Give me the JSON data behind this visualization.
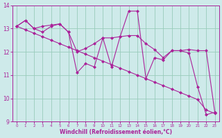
{
  "line1_x": [
    0,
    1,
    2,
    3,
    4,
    5,
    6,
    7,
    8,
    9,
    10,
    11,
    12,
    13,
    14,
    15,
    16,
    17,
    18,
    19,
    20,
    21,
    22,
    23
  ],
  "line1_y": [
    13.1,
    13.35,
    13.0,
    12.85,
    13.1,
    13.2,
    12.85,
    11.1,
    11.5,
    11.35,
    12.6,
    11.35,
    12.65,
    13.75,
    13.75,
    10.85,
    11.75,
    11.65,
    12.05,
    12.05,
    11.95,
    10.5,
    9.3,
    9.4
  ],
  "line2_x": [
    0,
    1,
    2,
    3,
    4,
    5,
    6,
    7,
    8,
    9,
    10,
    11,
    12,
    13,
    14,
    15,
    16,
    17,
    18,
    19,
    20,
    21,
    22,
    23
  ],
  "line2_y": [
    13.1,
    12.95,
    12.8,
    12.65,
    12.5,
    12.35,
    12.2,
    12.05,
    11.9,
    11.75,
    11.6,
    11.45,
    11.3,
    11.15,
    11.0,
    10.85,
    10.7,
    10.55,
    10.4,
    10.25,
    10.1,
    9.95,
    9.5,
    9.35
  ],
  "line3_x": [
    0,
    1,
    2,
    3,
    4,
    5,
    6,
    7,
    8,
    9,
    10,
    11,
    12,
    13,
    14,
    15,
    16,
    17,
    18,
    19,
    20,
    21,
    22,
    23
  ],
  "line3_y": [
    13.1,
    13.35,
    13.0,
    13.1,
    13.15,
    13.2,
    12.85,
    12.0,
    12.15,
    12.35,
    12.6,
    12.6,
    12.65,
    12.7,
    12.7,
    12.35,
    12.1,
    11.75,
    12.05,
    12.05,
    12.1,
    12.05,
    12.05,
    9.4
  ],
  "line_color": "#aa2299",
  "background_color": "#ceeaea",
  "grid_color": "#99ccbb",
  "xlabel": "Windchill (Refroidissement éolien,°C)",
  "xlim_min": -0.5,
  "xlim_max": 23.5,
  "ylim_min": 9,
  "ylim_max": 14,
  "yticks": [
    9,
    10,
    11,
    12,
    13,
    14
  ],
  "xticks": [
    0,
    1,
    2,
    3,
    4,
    5,
    6,
    7,
    8,
    9,
    10,
    11,
    12,
    13,
    14,
    15,
    16,
    17,
    18,
    19,
    20,
    21,
    22,
    23
  ]
}
